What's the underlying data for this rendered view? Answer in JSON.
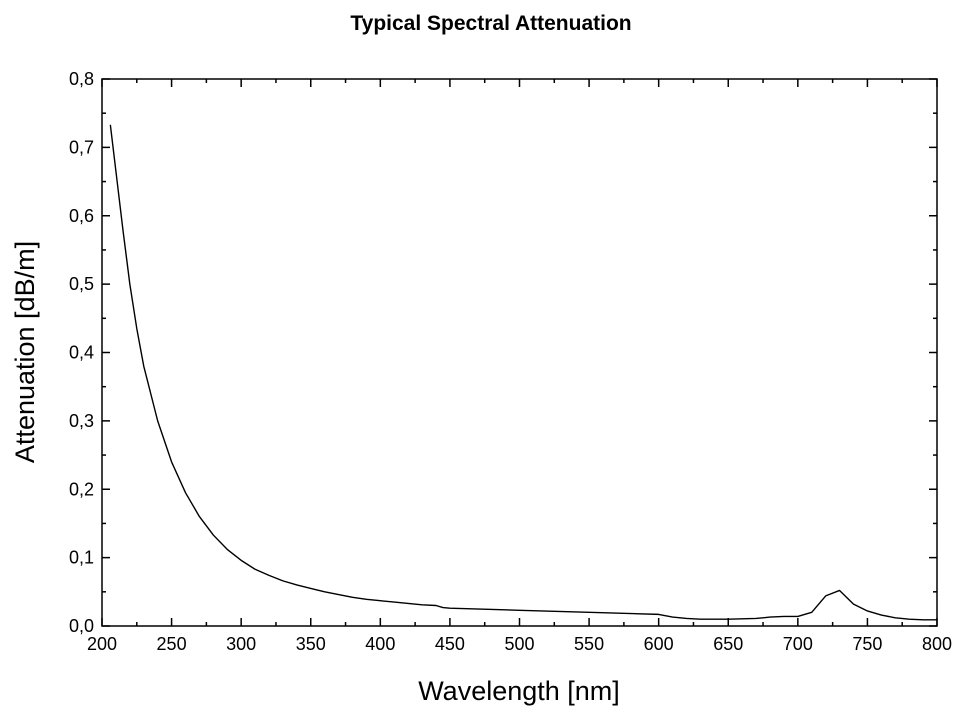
{
  "chart_data": {
    "type": "line",
    "title": "Typical Spectral Attenuation",
    "xlabel": "Wavelength [nm]",
    "ylabel": "Attenuation [dB/m]",
    "xlim": [
      200,
      800
    ],
    "ylim": [
      0,
      0.8
    ],
    "x_ticks": [
      200,
      250,
      300,
      350,
      400,
      450,
      500,
      550,
      600,
      650,
      700,
      750,
      800
    ],
    "x_tick_labels": [
      "200",
      "250",
      "300",
      "350",
      "400",
      "450",
      "500",
      "550",
      "600",
      "650",
      "700",
      "750",
      "800"
    ],
    "y_ticks": [
      0,
      0.1,
      0.2,
      0.3,
      0.4,
      0.5,
      0.6,
      0.7,
      0.8
    ],
    "y_tick_labels": [
      "0,0",
      "0,1",
      "0,2",
      "0,3",
      "0,4",
      "0,5",
      "0,6",
      "0,7",
      "0,8"
    ],
    "grid": false,
    "line_color": "#000000",
    "series": [
      {
        "x": [
          206,
          210,
          215,
          220,
          225,
          230,
          240,
          250,
          260,
          270,
          280,
          290,
          300,
          310,
          320,
          330,
          340,
          350,
          360,
          370,
          380,
          390,
          400,
          410,
          420,
          430,
          440,
          445,
          450,
          500,
          550,
          600,
          610,
          620,
          630,
          650,
          670,
          680,
          690,
          700,
          710,
          720,
          730,
          740,
          750,
          760,
          770,
          780,
          790,
          800
        ],
        "y": [
          0.733,
          0.665,
          0.58,
          0.5,
          0.435,
          0.38,
          0.3,
          0.24,
          0.195,
          0.16,
          0.133,
          0.112,
          0.096,
          0.083,
          0.074,
          0.066,
          0.06,
          0.055,
          0.05,
          0.046,
          0.042,
          0.039,
          0.037,
          0.035,
          0.033,
          0.031,
          0.03,
          0.027,
          0.026,
          0.023,
          0.02,
          0.017,
          0.013,
          0.011,
          0.01,
          0.01,
          0.011,
          0.013,
          0.014,
          0.014,
          0.02,
          0.044,
          0.052,
          0.032,
          0.022,
          0.016,
          0.012,
          0.01,
          0.009,
          0.009
        ]
      }
    ]
  }
}
